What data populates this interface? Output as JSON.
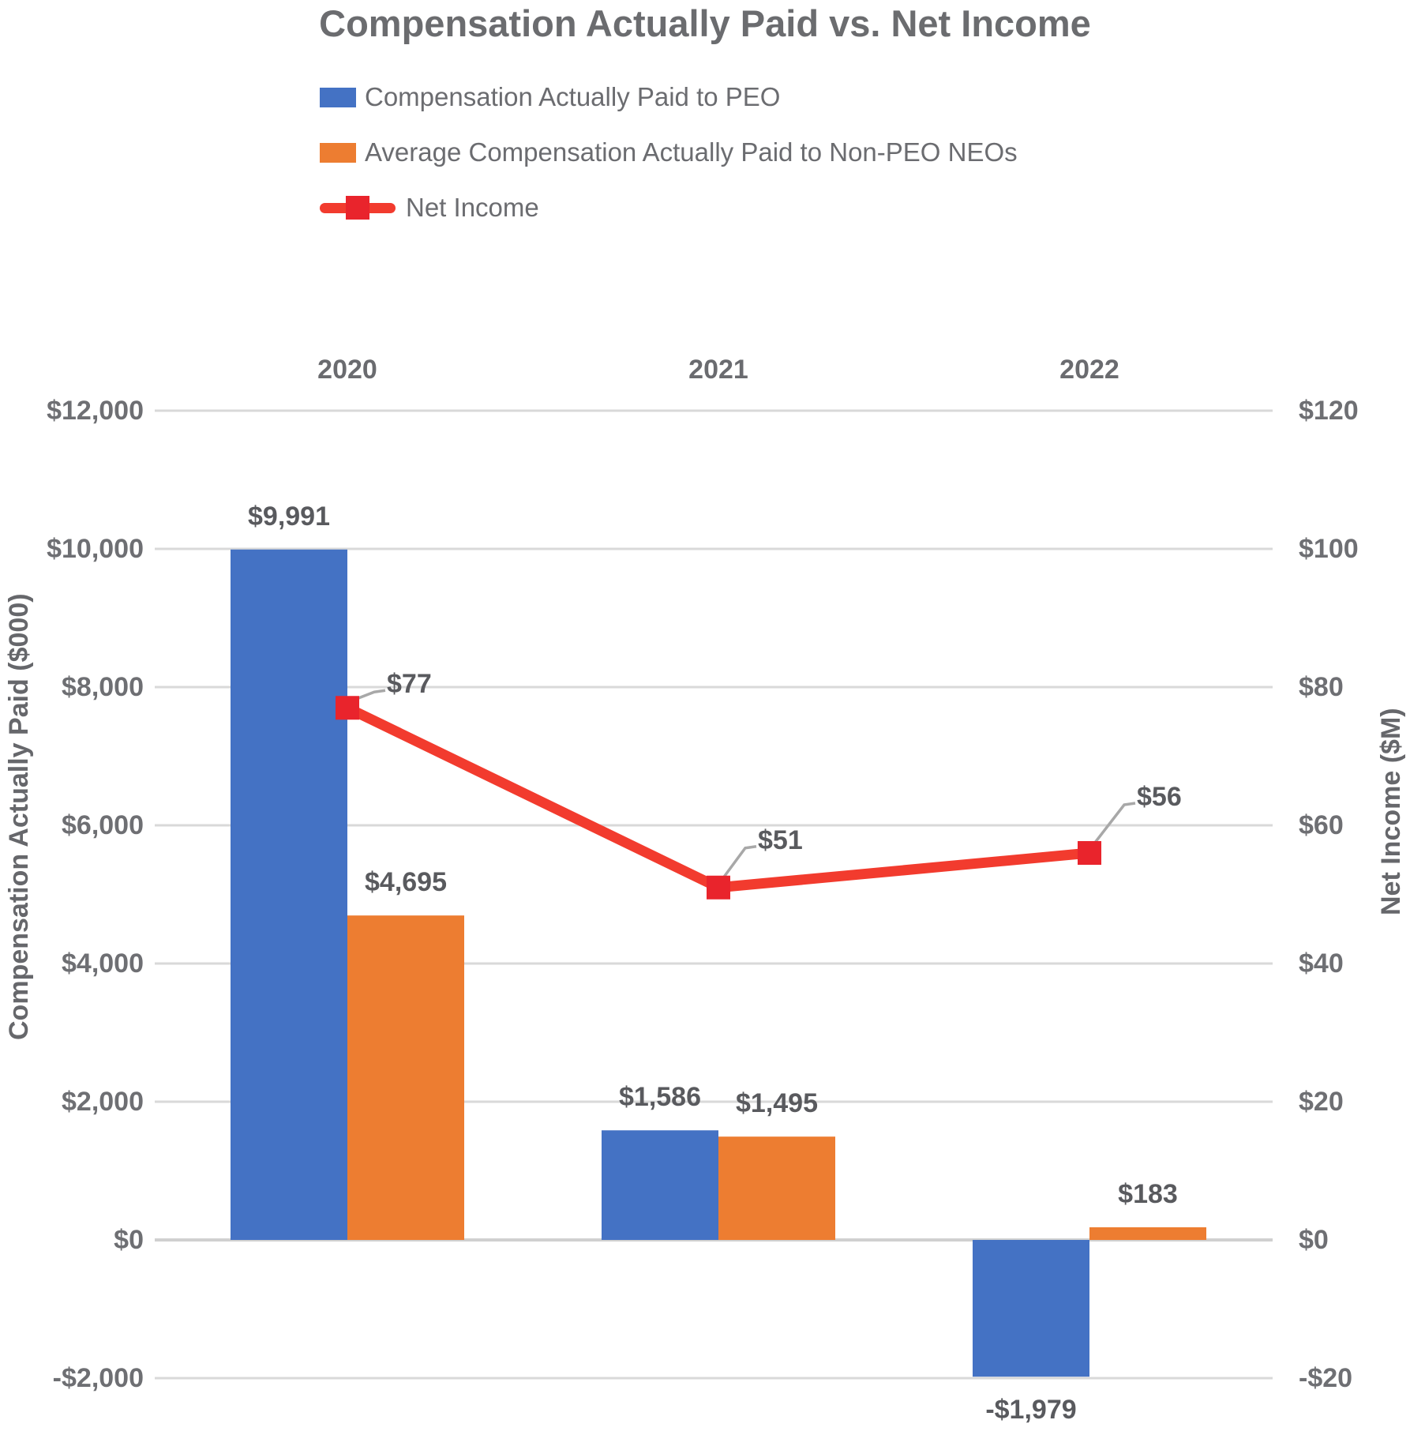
{
  "title": "Compensation Actually Paid vs. Net Income",
  "chart_data": {
    "type": "combo",
    "categories": [
      "2020",
      "2021",
      "2022"
    ],
    "series": [
      {
        "key": "cap-peo",
        "name": "Compensation Actually Paid to PEO",
        "type": "bar",
        "axis": "left",
        "color": "#4472C4",
        "values": [
          9991,
          1586,
          -1979
        ],
        "labels": [
          "$9,991",
          "$1,586",
          "-$1,979"
        ]
      },
      {
        "key": "cap-non-peo",
        "name": "Average Compensation Actually Paid to Non-PEO NEOs",
        "type": "bar",
        "axis": "left",
        "color": "#ED7D31",
        "values": [
          4695,
          1495,
          183
        ],
        "labels": [
          "$4,695",
          "$1,495",
          "$183"
        ]
      },
      {
        "key": "net-income",
        "name": "Net Income",
        "type": "line",
        "axis": "right",
        "color": "#F23B2E",
        "marker": "square",
        "marker_color": "#E9242C",
        "values": [
          77,
          51,
          56
        ],
        "labels": [
          "$77",
          "$51",
          "$56"
        ],
        "label_offsets": [
          [
            50,
            -30
          ],
          [
            50,
            -60
          ],
          [
            60,
            -71
          ]
        ]
      }
    ],
    "left_axis": {
      "title": "Compensation Actually Paid ($000)",
      "min": -2000,
      "max": 12000,
      "ticks": [
        {
          "v": 12000,
          "label": "$12,000"
        },
        {
          "v": 10000,
          "label": "$10,000"
        },
        {
          "v": 8000,
          "label": "$8,000"
        },
        {
          "v": 6000,
          "label": "$6,000"
        },
        {
          "v": 4000,
          "label": "$4,000"
        },
        {
          "v": 2000,
          "label": "$2,000"
        },
        {
          "v": 0,
          "label": "$0"
        },
        {
          "v": -2000,
          "label": "-$2,000"
        }
      ]
    },
    "right_axis": {
      "title": "Net Income ($M)",
      "min": -20,
      "max": 120,
      "ticks": [
        {
          "v": 120,
          "label": "$120"
        },
        {
          "v": 100,
          "label": "$100"
        },
        {
          "v": 80,
          "label": "$80"
        },
        {
          "v": 60,
          "label": "$60"
        },
        {
          "v": 40,
          "label": "$40"
        },
        {
          "v": 20,
          "label": "$20"
        },
        {
          "v": 0,
          "label": "$0"
        },
        {
          "v": -20,
          "label": "-$20"
        }
      ]
    },
    "grid": true,
    "legend_position": "top-left",
    "colors": {
      "gridline": "#D9D9D9",
      "zero_line": "#D0D0D0",
      "callout": "#A8A8A8",
      "text_gray": "#6E6F73"
    }
  }
}
